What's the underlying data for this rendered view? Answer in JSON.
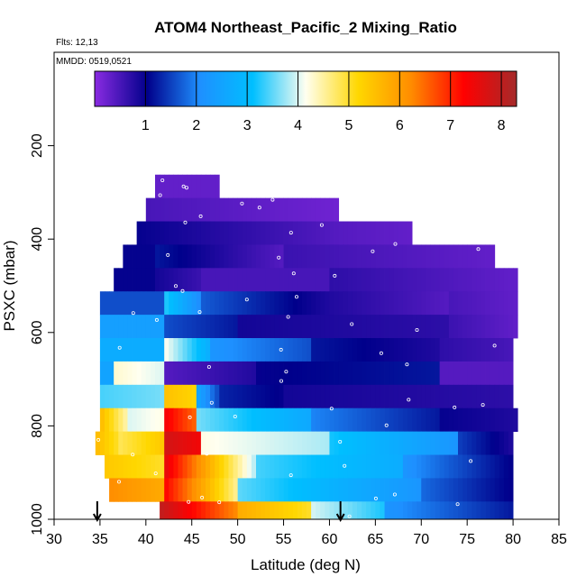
{
  "chart_data": {
    "type": "heatmap",
    "title": "ATOM4 Northeast_Pacific_2 Mixing_Ratio",
    "flights_note": "Flts: 12,13",
    "date_note": "MMDD: 0519,0521",
    "xlabel": "Latitude (deg N)",
    "ylabel": "PSXC (mbar)",
    "xlim": [
      30,
      85
    ],
    "ylim": [
      1000,
      0
    ],
    "x_ticks": [
      30,
      35,
      40,
      45,
      50,
      55,
      60,
      65,
      70,
      75,
      80,
      85
    ],
    "y_ticks": [
      200,
      400,
      600,
      800,
      1000
    ],
    "colorbar": {
      "min": 0,
      "max": 8.3,
      "ticks": [
        1,
        2,
        3,
        4,
        5,
        6,
        7,
        8
      ],
      "colors": [
        "#8a2be2",
        "#00008b",
        "#1e90ff",
        "#00bfff",
        "#fffff0",
        "#ffd700",
        "#ff8c00",
        "#ff0000",
        "#a52a2a"
      ]
    },
    "arrows_latitude": [
      34.7,
      61.2
    ],
    "rows": [
      {
        "p_top": 262,
        "p_bot": 312,
        "segments": [
          [
            41,
            48,
            0.3,
            0.3
          ]
        ]
      },
      {
        "p_top": 312,
        "p_bot": 362,
        "segments": [
          [
            40,
            61,
            0.5,
            0.2
          ]
        ]
      },
      {
        "p_top": 362,
        "p_bot": 412,
        "segments": [
          [
            39,
            61,
            1.0,
            0.4
          ],
          [
            61,
            69,
            0.4,
            0.3
          ]
        ]
      },
      {
        "p_top": 412,
        "p_bot": 462,
        "segments": [
          [
            37.5,
            41,
            1.0,
            1.0
          ],
          [
            41,
            55,
            1.2,
            0.4
          ],
          [
            55,
            78,
            0.6,
            0.3
          ]
        ]
      },
      {
        "p_top": 462,
        "p_bot": 512,
        "segments": [
          [
            36.5,
            41,
            1.0,
            1.0
          ],
          [
            41,
            46,
            0.9,
            0.6
          ],
          [
            46,
            60,
            0.5,
            0.5
          ],
          [
            60,
            80.5,
            0.7,
            0.3
          ]
        ]
      },
      {
        "p_top": 512,
        "p_bot": 562,
        "segments": [
          [
            35,
            42,
            1.6,
            1.6
          ],
          [
            42,
            46,
            3.3,
            2.0
          ],
          [
            46,
            60,
            1.7,
            0.8
          ],
          [
            60,
            73,
            0.8,
            0.4
          ],
          [
            73,
            80.5,
            0.5,
            0.3
          ]
        ]
      },
      {
        "p_top": 562,
        "p_bot": 612,
        "segments": [
          [
            35,
            42,
            2.4,
            2.4
          ],
          [
            42,
            50,
            1.6,
            1.2
          ],
          [
            50,
            73,
            0.9,
            0.7
          ],
          [
            73,
            80.5,
            0.6,
            0.3
          ]
        ]
      },
      {
        "p_top": 612,
        "p_bot": 662,
        "segments": [
          [
            35,
            42,
            2.7,
            2.7
          ],
          [
            42,
            47,
            4.2,
            2.7
          ],
          [
            47,
            58,
            2.2,
            1.6
          ],
          [
            58,
            72,
            1.2,
            0.8
          ],
          [
            72,
            80,
            0.7,
            0.5
          ]
        ]
      },
      {
        "p_top": 662,
        "p_bot": 712,
        "segments": [
          [
            35,
            36.5,
            2.5,
            2.5
          ],
          [
            36.5,
            42,
            4.3,
            4.0
          ],
          [
            42,
            52,
            0.4,
            0.8
          ],
          [
            52,
            72,
            1.0,
            1.2
          ],
          [
            72,
            80,
            0.4,
            0.4
          ]
        ]
      },
      {
        "p_top": 712,
        "p_bot": 762,
        "segments": [
          [
            35,
            42,
            3.4,
            3.6
          ],
          [
            42,
            45.5,
            5.5,
            5.2
          ],
          [
            45.5,
            48,
            2.6,
            1.5
          ],
          [
            48,
            55,
            1.3,
            1.0
          ],
          [
            55,
            80,
            0.9,
            0.7
          ]
        ]
      },
      {
        "p_top": 762,
        "p_bot": 812,
        "segments": [
          [
            35,
            38,
            5.6,
            4.4
          ],
          [
            38,
            42,
            4.0,
            4.2
          ],
          [
            42,
            45.5,
            7.4,
            6.5
          ],
          [
            45.5,
            58,
            3.6,
            2.6
          ],
          [
            58,
            72,
            2.0,
            1.2
          ],
          [
            72,
            80.5,
            1.0,
            0.8
          ]
        ]
      },
      {
        "p_top": 812,
        "p_bot": 862,
        "segments": [
          [
            34.5,
            37,
            5.6,
            5.0
          ],
          [
            37,
            42,
            4.8,
            5.4
          ],
          [
            42,
            46,
            7.8,
            7.4
          ],
          [
            46,
            60,
            4.2,
            3.8
          ],
          [
            60,
            74,
            3.2,
            2.2
          ],
          [
            74,
            80,
            1.5,
            0.8
          ]
        ]
      },
      {
        "p_top": 862,
        "p_bot": 912,
        "segments": [
          [
            35.5,
            42,
            5.4,
            5.0
          ],
          [
            42,
            52,
            7.6,
            3.8
          ],
          [
            52,
            68,
            3.4,
            2.7
          ],
          [
            68,
            80,
            2.2,
            1.0
          ]
        ]
      },
      {
        "p_top": 912,
        "p_bot": 962,
        "segments": [
          [
            36,
            42,
            6.2,
            5.8
          ],
          [
            42,
            50,
            7.3,
            4.5
          ],
          [
            50,
            70,
            3.5,
            2.2
          ],
          [
            70,
            80,
            1.8,
            1.0
          ]
        ]
      },
      {
        "p_top": 962,
        "p_bot": 1000,
        "segments": [
          [
            41.5,
            50,
            8.0,
            6.2
          ],
          [
            50,
            58,
            5.8,
            5.0
          ],
          [
            58,
            66,
            4.0,
            3.2
          ],
          [
            66,
            80,
            2.2,
            1.2
          ]
        ]
      }
    ]
  }
}
